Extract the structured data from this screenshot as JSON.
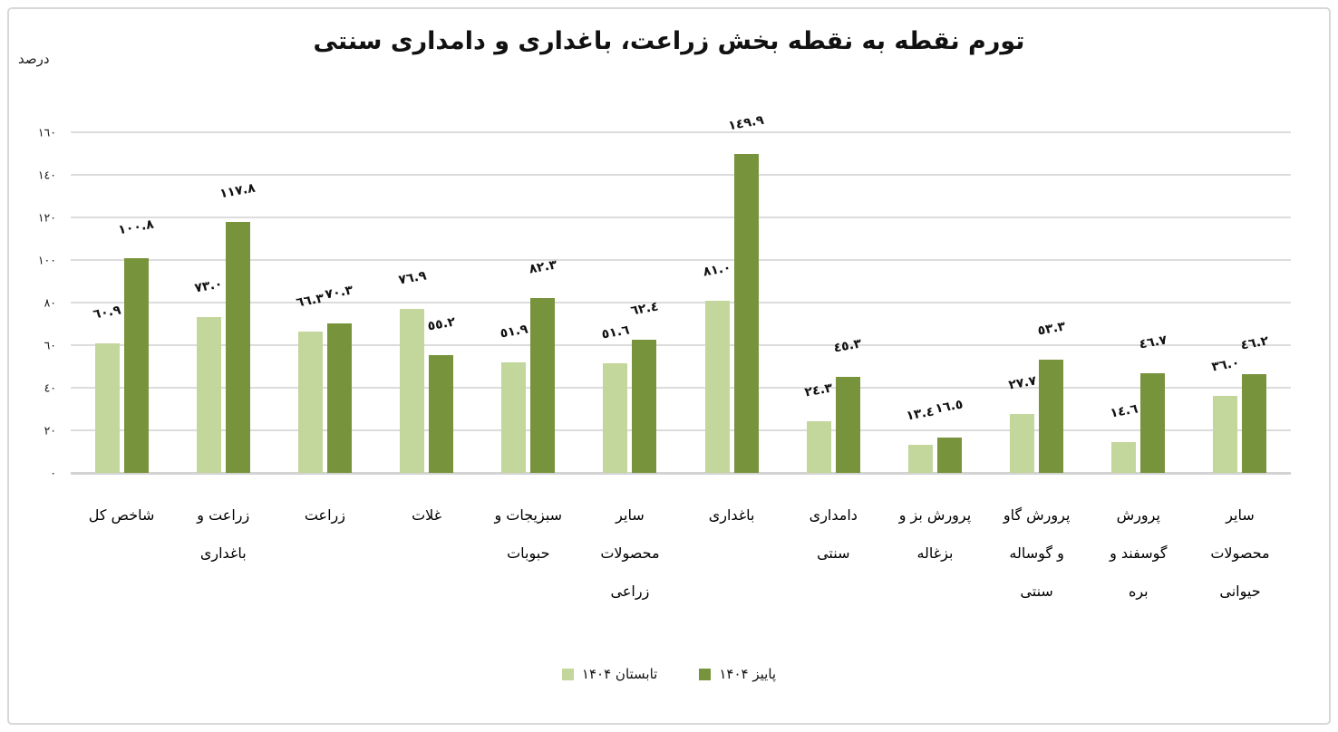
{
  "chart": {
    "title": "تورم نقطه به نقطه بخش زراعت، باغداری و دامداری سنتی",
    "unit_label": "درصد"
  },
  "chart_data": {
    "type": "bar",
    "title": "تورم نقطه به نقطه بخش زراعت، باغداری و دامداری سنتی",
    "xlabel": "",
    "ylabel": "درصد",
    "ylim": [
      0,
      160
    ],
    "ytick_step": 20,
    "grid": true,
    "rtl": true,
    "legend_position": "bottom",
    "categories": [
      "شاخص کل",
      "زراعت و باغداری",
      "زراعت",
      "غلات",
      "سبزیجات و حبوبات",
      "سایر محصولات زراعی",
      "باغداری",
      "دامداری سنتی",
      "پرورش بز و بزغاله",
      "پرورش گاو و گوساله سنتی",
      "پرورش گوسفند و بره",
      "سایر محصولات حیوانی"
    ],
    "category_lines": [
      [
        "شاخص کل"
      ],
      [
        "زراعت و",
        "باغداری"
      ],
      [
        "زراعت"
      ],
      [
        "غلات"
      ],
      [
        "سبزیجات و",
        "حبوبات"
      ],
      [
        "سایر",
        "محصولات",
        "زراعی"
      ],
      [
        "باغداری"
      ],
      [
        "دامداری",
        "سنتی"
      ],
      [
        "پرورش بز و",
        "بزغاله"
      ],
      [
        "پرورش گاو",
        "و گوساله",
        "سنتی"
      ],
      [
        "پرورش",
        "گوسفند و",
        "بره"
      ],
      [
        "سایر",
        "محصولات",
        "حیوانی"
      ]
    ],
    "series": [
      {
        "name": "تابستان ۱۴۰۴",
        "color": "#c3d69b",
        "values": [
          60.9,
          73.0,
          66.3,
          76.9,
          51.9,
          51.6,
          81.0,
          24.3,
          13.4,
          27.7,
          14.6,
          36.0
        ],
        "labels": [
          "٦٠.٩",
          "٧٣.٠",
          "٦٦.٣",
          "٧٦.٩",
          "٥١.٩",
          "٥١.٦",
          "٨١.٠",
          "٢٤.٣",
          "١٣.٤",
          "٢٧.٧",
          "١٤.٦",
          "٣٦.٠"
        ]
      },
      {
        "name": "پاییز ۱۴۰۴",
        "color": "#77933c",
        "values": [
          100.8,
          117.8,
          70.3,
          55.2,
          82.3,
          62.4,
          149.9,
          45.3,
          16.5,
          53.3,
          46.7,
          46.2
        ],
        "labels": [
          "١٠٠.٨",
          "١١٧.٨",
          "٧٠.٣",
          "٥٥.٢",
          "٨٢.٣",
          "٦٢.٤",
          "١٤٩.٩",
          "٤٥.٣",
          "١٦.٥",
          "٥٣.٣",
          "٤٦.٧",
          "٤٦.٢"
        ]
      }
    ],
    "yticks": [
      {
        "value": 160,
        "label": "١٦٠"
      },
      {
        "value": 140,
        "label": "١٤٠"
      },
      {
        "value": 120,
        "label": "١٢٠"
      },
      {
        "value": 100,
        "label": "١٠٠"
      },
      {
        "value": 80,
        "label": "٨٠"
      },
      {
        "value": 60,
        "label": "٦٠"
      },
      {
        "value": 40,
        "label": "٤٠"
      },
      {
        "value": 20,
        "label": "٢٠"
      },
      {
        "value": 0,
        "label": "٠"
      }
    ]
  },
  "colors": {
    "summer_bar": "#c3d69b",
    "autumn_bar": "#77933c",
    "gridline": "#dcdcdc",
    "baseline": "#d3d3d3",
    "frame_border": "#d8d8d8",
    "text": "#111111"
  }
}
